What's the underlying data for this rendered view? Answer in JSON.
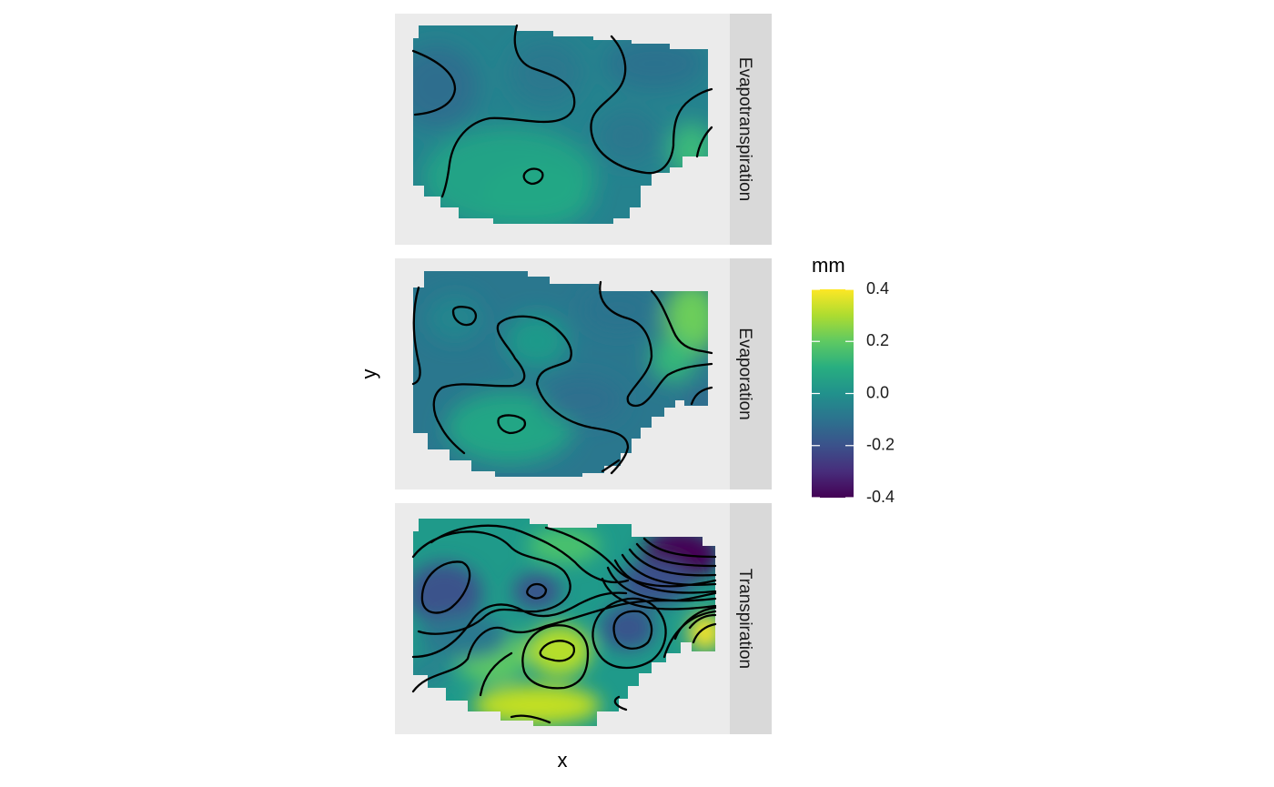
{
  "chart_data": {
    "type": "heatmap",
    "title": "",
    "xlabel": "x",
    "ylabel": "y",
    "facets": [
      {
        "label": "Evapotranspiration",
        "value_range": [
          -0.1,
          0.15
        ]
      },
      {
        "label": "Evaporation",
        "value_range": [
          -0.15,
          0.35
        ]
      },
      {
        "label": "Transpiration",
        "value_range": [
          -0.4,
          0.4
        ]
      }
    ],
    "legend": {
      "title": "mm",
      "position": "right",
      "colormap": "viridis",
      "range": [
        -0.4,
        0.4
      ],
      "ticks": [
        0.4,
        0.2,
        0.0,
        -0.2,
        -0.4
      ],
      "tick_labels": [
        "0.4",
        "0.2",
        "0.0",
        "-0.2",
        "-0.4"
      ]
    },
    "contours": true,
    "grid": false
  },
  "colors": {
    "panel_background": "#ebebeb",
    "strip_background": "#d9d9d9",
    "colormap_low": "#440154",
    "colormap_mid": "#21918c",
    "colormap_high": "#fde725"
  }
}
